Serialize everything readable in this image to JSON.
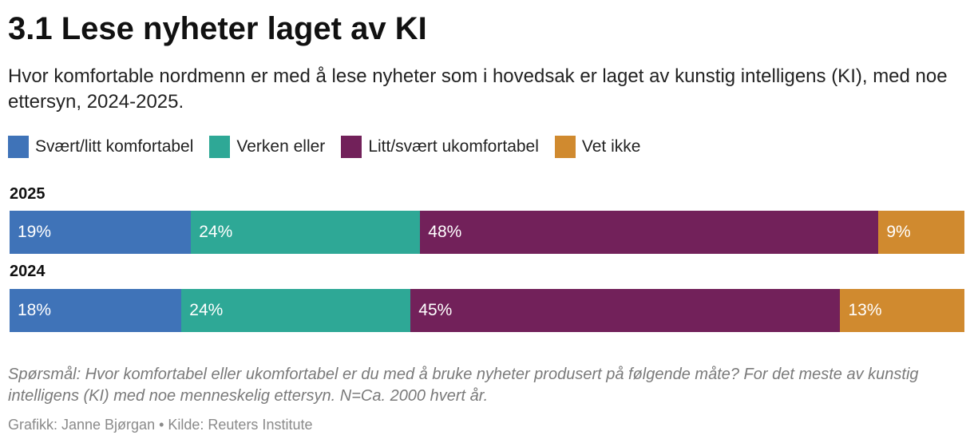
{
  "chart_data": {
    "type": "bar",
    "orientation": "horizontal",
    "stacked": true,
    "title": "3.1 Lese nyheter laget av KI",
    "subtitle": "Hvor komfortable nordmenn er med å lese nyheter som i hovedsak er laget av kunstig intelligens (KI), med noe ettersyn, 2024-2025.",
    "legend_position": "top-left",
    "unit": "%",
    "categories": [
      "2025",
      "2024"
    ],
    "series": [
      {
        "name": "Svært/litt komfortabel",
        "color": "#3f73b8",
        "values": [
          19,
          18
        ],
        "labels": [
          "19%",
          "18%"
        ]
      },
      {
        "name": "Verken eller",
        "color": "#2ea896",
        "values": [
          24,
          24
        ],
        "labels": [
          "24%",
          "24%"
        ]
      },
      {
        "name": "Litt/svært ukomfortabel",
        "color": "#72215a",
        "values": [
          48,
          45
        ],
        "labels": [
          "48%",
          "45%"
        ]
      },
      {
        "name": "Vet ikke",
        "color": "#d08a2f",
        "values": [
          9,
          13
        ],
        "labels": [
          "9%",
          "13%"
        ]
      }
    ]
  },
  "footnote": "Spørsmål: Hvor komfortabel eller ukomfortabel er du med å bruke nyheter produsert på følgende måte? For det meste av kunstig intelligens (KI) med noe menneskelig ettersyn. N=Ca. 2000 hvert år.",
  "credit": "Grafikk: Janne Bjørgan • Kilde: Reuters Institute"
}
